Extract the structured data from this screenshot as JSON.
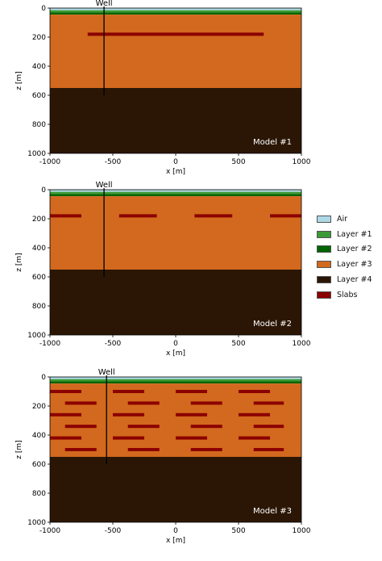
{
  "colors": {
    "air": "#add8e6",
    "layer1": "#3c9a34",
    "layer2": "#006400",
    "layer3": "#d2691e",
    "layer4": "#2b1605",
    "slab": "#8b0000",
    "well": "#000000"
  },
  "axes": {
    "x_label": "x [m]",
    "y_label": "z [m]",
    "x_ticks": [
      "-1000",
      "-500",
      "0",
      "500",
      "1000"
    ],
    "y_ticks": [
      "0",
      "200",
      "400",
      "600",
      "800",
      "1000"
    ]
  },
  "panels": [
    {
      "model_label": "Model #1",
      "well_label": "Well",
      "slabs": [
        [
          -700,
          700
        ]
      ],
      "well_depth": 600,
      "well_x": -570,
      "slab_rows": [
        180
      ]
    },
    {
      "model_label": "Model #2",
      "well_label": "Well",
      "slabs": [
        [
          -1000,
          -750
        ],
        [
          -450,
          -150
        ],
        [
          150,
          450
        ],
        [
          750,
          1000
        ]
      ],
      "well_depth": 600,
      "well_x": -570,
      "slab_rows": [
        180
      ]
    },
    {
      "model_label": "Model #3",
      "well_label": "Well",
      "well_depth": 600,
      "well_x": -550,
      "slab_grid": [
        {
          "z": 100,
          "segments": [
            [
              -1000,
              -750
            ],
            [
              -500,
              -250
            ],
            [
              0,
              250
            ],
            [
              500,
              750
            ]
          ]
        },
        {
          "z": 180,
          "segments": [
            [
              -880,
              -630
            ],
            [
              -380,
              -130
            ],
            [
              120,
              370
            ],
            [
              620,
              860
            ]
          ]
        },
        {
          "z": 260,
          "segments": [
            [
              -1000,
              -750
            ],
            [
              -500,
              -250
            ],
            [
              0,
              250
            ],
            [
              500,
              750
            ]
          ]
        },
        {
          "z": 340,
          "segments": [
            [
              -880,
              -630
            ],
            [
              -380,
              -130
            ],
            [
              120,
              370
            ],
            [
              620,
              860
            ]
          ]
        },
        {
          "z": 420,
          "segments": [
            [
              -1000,
              -750
            ],
            [
              -500,
              -250
            ],
            [
              0,
              250
            ],
            [
              500,
              750
            ]
          ]
        },
        {
          "z": 500,
          "segments": [
            [
              -880,
              -630
            ],
            [
              -380,
              -130
            ],
            [
              120,
              370
            ],
            [
              620,
              860
            ]
          ]
        }
      ]
    }
  ],
  "layers": {
    "air_bottom": 15,
    "layer1_bottom": 30,
    "layer2_bottom": 45,
    "layer3_bottom": 550
  },
  "legend": [
    {
      "label": "Air",
      "color": "#add8e6"
    },
    {
      "label": "Layer #1",
      "color": "#3c9a34"
    },
    {
      "label": "Layer #2",
      "color": "#006400"
    },
    {
      "label": "Layer #3",
      "color": "#d2691e"
    },
    {
      "label": "Layer #4",
      "color": "#2b1605"
    },
    {
      "label": "Slabs",
      "color": "#8b0000"
    }
  ]
}
